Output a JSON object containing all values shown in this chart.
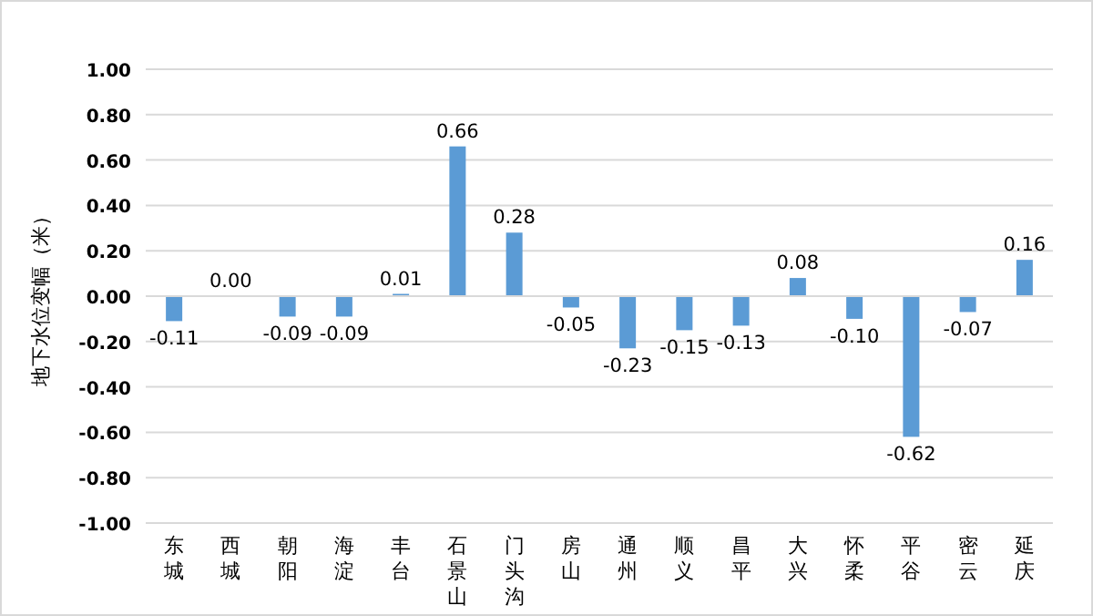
{
  "chart_data": {
    "type": "bar",
    "ylabel": "地下水位变幅（米）",
    "categories": [
      "东城",
      "西城",
      "朝阳",
      "海淀",
      "丰台",
      "石景山",
      "门头沟",
      "房山",
      "通州",
      "顺义",
      "昌平",
      "大兴",
      "怀柔",
      "平谷",
      "密云",
      "延庆"
    ],
    "values": [
      -0.11,
      0.0,
      -0.09,
      -0.09,
      0.01,
      0.66,
      0.28,
      -0.05,
      -0.23,
      -0.15,
      -0.13,
      0.08,
      -0.1,
      -0.62,
      -0.07,
      0.16
    ],
    "value_labels": [
      "-0.11",
      "0.00",
      "-0.09",
      "-0.09",
      "0.01",
      "0.66",
      "0.28",
      "-0.05",
      "-0.23",
      "-0.15",
      "-0.13",
      "0.08",
      "-0.10",
      "-0.62",
      "-0.07",
      "0.16"
    ],
    "color": "#5b9bd5",
    "ylim": [
      -1,
      1
    ],
    "yticks": [
      {
        "value": -1,
        "label": "-1.00"
      },
      {
        "value": -0.8,
        "label": "-0.80"
      },
      {
        "value": -0.6,
        "label": "-0.60"
      },
      {
        "value": -0.4,
        "label": "-0.40"
      },
      {
        "value": -0.2,
        "label": "-0.20"
      },
      {
        "value": 0,
        "label": "0.00"
      },
      {
        "value": 0.2,
        "label": "0.20"
      },
      {
        "value": 0.4,
        "label": "0.40"
      },
      {
        "value": 0.6,
        "label": "0.60"
      },
      {
        "value": 0.8,
        "label": "0.80"
      },
      {
        "value": 1,
        "label": "1.00"
      }
    ],
    "grid": "y"
  }
}
